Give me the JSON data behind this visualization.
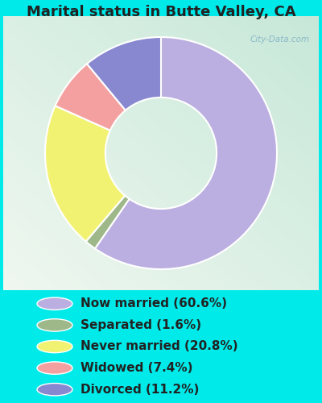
{
  "title": "Marital status in Butte Valley, CA",
  "slices": [
    60.6,
    1.6,
    20.8,
    7.4,
    11.2
  ],
  "labels": [
    "Now married (60.6%)",
    "Separated (1.6%)",
    "Never married (20.8%)",
    "Widowed (7.4%)",
    "Divorced (11.2%)"
  ],
  "colors": [
    "#bbaee0",
    "#9eb88a",
    "#f2f272",
    "#f4a0a0",
    "#8888d0"
  ],
  "bg_color": "#00eaea",
  "chart_bg_tl": "#d0ede0",
  "chart_bg_tr": "#eaf5f0",
  "chart_bg_br": "#f0f8f4",
  "title_fontsize": 13,
  "title_color": "#222222",
  "legend_fontsize": 11,
  "watermark": "City-Data.com",
  "donut_width": 0.52,
  "startangle": 90,
  "wedge_edge_color": "white",
  "wedge_edge_width": 1.5
}
